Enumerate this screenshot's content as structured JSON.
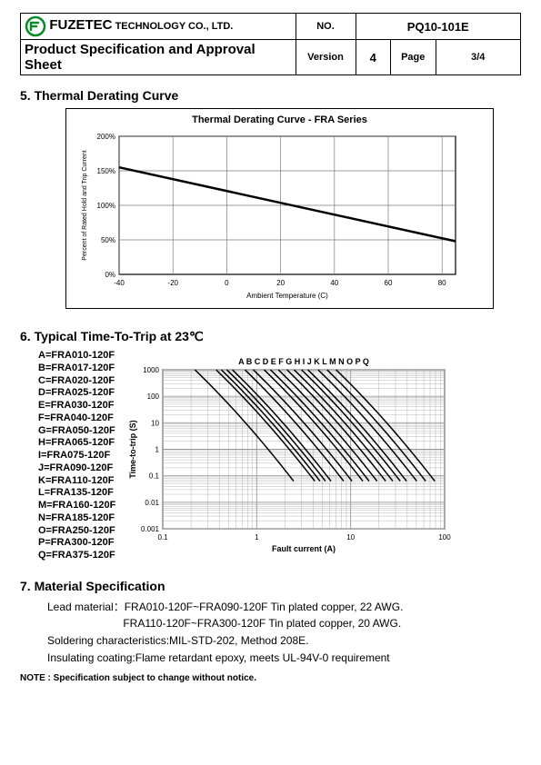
{
  "header": {
    "company_big": "FUZETEC",
    "company_small": " TECHNOLOGY CO., LTD.",
    "no_label": "NO.",
    "doc_no": "PQ10-101E",
    "title": "Product Specification and Approval Sheet",
    "version_label": "Version",
    "version": "4",
    "page_label": "Page",
    "page": "3/4"
  },
  "section5": {
    "heading": "5. Thermal Derating Curve",
    "chart": {
      "title": "Thermal Derating Curve - FRA  Series",
      "xlabel": "Ambient Temperature (C)",
      "ylabel": "Percent of Rated Hold and Trip Current",
      "xlim": [
        -40,
        85
      ],
      "ylim": [
        0,
        200
      ],
      "xticks": [
        -40,
        -20,
        0,
        20,
        40,
        60,
        80
      ],
      "yticks": [
        "0%",
        "50%",
        "100%",
        "150%",
        "200%"
      ],
      "line": [
        [
          -40,
          155
        ],
        [
          85,
          48
        ]
      ],
      "grid_color": "#7b7b7b",
      "line_color": "#000000",
      "background": "#ffffff"
    }
  },
  "section6": {
    "heading": "6. Typical Time-To-Trip at 23℃",
    "legend": [
      "A=FRA010-120F",
      "B=FRA017-120F",
      "C=FRA020-120F",
      "D=FRA025-120F",
      "E=FRA030-120F",
      "F=FRA040-120F",
      "G=FRA050-120F",
      "H=FRA065-120F",
      "I=FRA075-120F",
      "J=FRA090-120F",
      "K=FRA110-120F",
      "L=FRA135-120F",
      "M=FRA160-120F",
      "N=FRA185-120F",
      "O=FRA250-120F",
      "P=FRA300-120F",
      "Q=FRA375-120F"
    ],
    "chart": {
      "title_letters": "A   B C D E   F   G  H  I   J   K L M N O P Q",
      "xlabel": "Fault current (A)",
      "ylabel": "Time-to-trip (S)",
      "xlim": [
        0.1,
        100
      ],
      "ylim": [
        0.001,
        1000
      ],
      "xticks": [
        0.1,
        1,
        10,
        100
      ],
      "yticks": [
        0.001,
        0.01,
        0.1,
        1,
        10,
        100,
        1000
      ],
      "grid_color": "#9a9a9a",
      "line_color": "#000000",
      "background": "#ffffff",
      "curves_x_top": [
        0.22,
        0.37,
        0.42,
        0.48,
        0.55,
        0.75,
        0.92,
        1.2,
        1.4,
        1.7,
        2.1,
        2.5,
        3.0,
        3.5,
        4.5,
        5.6,
        7.0
      ]
    }
  },
  "section7": {
    "heading": "7. Material Specification",
    "lines": [
      "Lead material：FRA010-120F~FRA090-120F Tin plated copper, 22 AWG.",
      "                         FRA110-120F~FRA300-120F Tin plated copper, 20 AWG.",
      "Soldering characteristics:MIL-STD-202, Method 208E.",
      "Insulating coating:Flame retardant epoxy, meets UL-94V-0 requirement"
    ]
  },
  "note": "NOTE : Specification subject to change without notice."
}
